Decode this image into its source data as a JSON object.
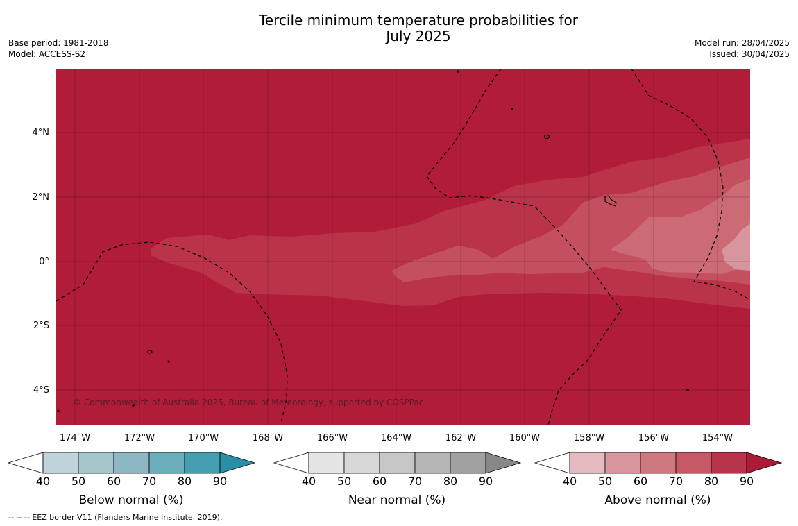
{
  "header": {
    "title_line1": "Tercile minimum temperature probabilities for",
    "title_line2": "July 2025",
    "base_period": "Base period: 1981-2018",
    "model": "Model: ACCESS-S2",
    "model_run": "Model run: 28/04/2025",
    "issued": "Issued: 30/04/2025"
  },
  "map": {
    "lon_labels": [
      "174°W",
      "172°W",
      "170°W",
      "168°W",
      "166°W",
      "164°W",
      "162°W",
      "160°W",
      "158°W",
      "156°W",
      "154°W"
    ],
    "lat_labels": [
      "4°N",
      "2°N",
      "0°",
      "2°S",
      "4°S"
    ],
    "copyright": "© Commonwealth of Australia 2025, Bureau of Meteorology, supported by COSPPac",
    "colors": {
      "above_90": "#b11d39",
      "above_80": "#ba3349",
      "above_70": "#c4505f",
      "above_60": "#cc6a75",
      "above_50": "#d7969e"
    }
  },
  "colorbars": [
    {
      "label": "Below normal (%)",
      "ticks": [
        "40",
        "50",
        "60",
        "70",
        "80",
        "90"
      ],
      "colors": [
        "#ffffff",
        "#bfd4db",
        "#a7c6cc",
        "#8cb8c4",
        "#6aadbb",
        "#469fb1",
        "#2a8ea6"
      ]
    },
    {
      "label": "Near normal (%)",
      "ticks": [
        "40",
        "50",
        "60",
        "70",
        "80",
        "90"
      ],
      "colors": [
        "#ffffff",
        "#e5e5e5",
        "#d8d8d8",
        "#c7c7c7",
        "#b5b5b5",
        "#a1a1a1",
        "#888888"
      ]
    },
    {
      "label": "Above normal (%)",
      "ticks": [
        "40",
        "50",
        "60",
        "70",
        "80",
        "90"
      ],
      "colors": [
        "#ffffff",
        "#e4b9bf",
        "#da969e",
        "#d07880",
        "#c55a66",
        "#b8344a",
        "#ac1a35"
      ]
    }
  ],
  "footnote": "--  --  -- EEZ border V11 (Flanders Marine Institute, 2019)."
}
